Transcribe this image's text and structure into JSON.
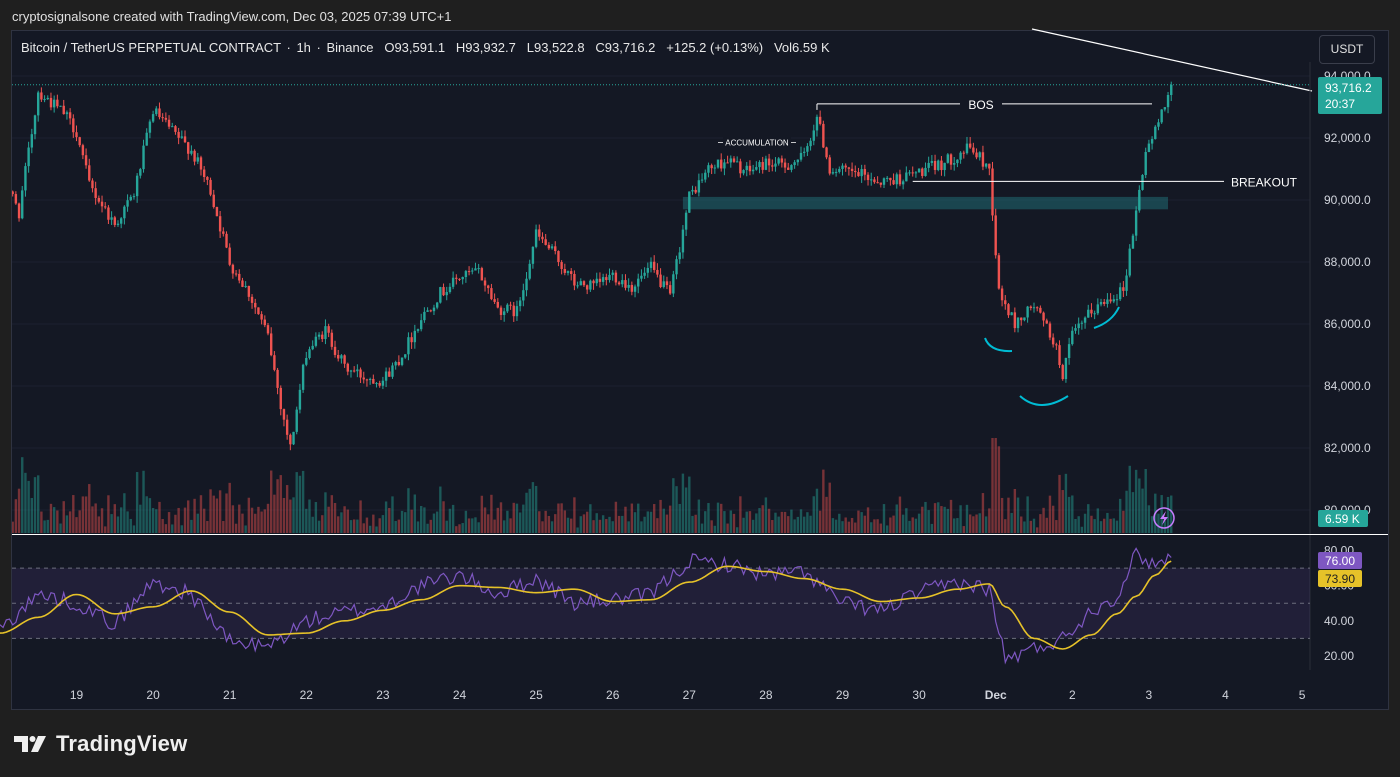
{
  "header": {
    "attribution": "cryptosignalsone created with TradingView.com, Dec 03, 2025 07:39 UTC+1"
  },
  "legend": {
    "symbol": "Bitcoin / TetherUS PERPETUAL CONTRACT",
    "interval": "1h",
    "exchange": "Binance",
    "open": "O93,591.1",
    "high": "H93,932.7",
    "low": "L93,522.8",
    "close": "C93,716.2",
    "change": "+125.2 (+0.13%)",
    "volume": "Vol6.59 K"
  },
  "currency_button": "USDT",
  "brand": {
    "name": "TradingView",
    "icon": "tradingview-logo-icon"
  },
  "colors": {
    "up": "#26a69a",
    "down": "#ef5350",
    "rsi": "#7e57c2",
    "rsi_ma": "#e6c229",
    "zone": "#1f6b73",
    "cup": "#00bcd4"
  },
  "chart_data": [
    {
      "type": "candlestick",
      "y_axis": {
        "ticks": [
          80000,
          82000,
          84000,
          86000,
          88000,
          90000,
          92000,
          94000
        ],
        "tick_labels": [
          "80,000.0",
          "82,000.0",
          "84,000.0",
          "86,000.0",
          "88,000.0",
          "90,000.0",
          "92,000.0",
          "94,000.0"
        ],
        "ylim": [
          79700,
          95400
        ]
      },
      "x_axis": {
        "tick_labels": [
          "19",
          "20",
          "21",
          "22",
          "23",
          "24",
          "25",
          "26",
          "27",
          "28",
          "29",
          "30",
          "Dec",
          "2",
          "3",
          "4",
          "5"
        ]
      },
      "price_path": [
        {
          "date": "Nov 18 00:00",
          "close": 91000
        },
        {
          "date": "Nov 18 06:00",
          "close": 89600
        },
        {
          "date": "Nov 18 12:00",
          "close": 93500
        },
        {
          "date": "Nov 18 20:00",
          "close": 92800
        },
        {
          "date": "Nov 19 00:00",
          "close": 92200
        },
        {
          "date": "Nov 19 04:00",
          "close": 90500
        },
        {
          "date": "Nov 19 12:00",
          "close": 89200
        },
        {
          "date": "Nov 19 18:00",
          "close": 90200
        },
        {
          "date": "Nov 20 00:00",
          "close": 92900
        },
        {
          "date": "Nov 20 06:00",
          "close": 92200
        },
        {
          "date": "Nov 20 12:00",
          "close": 91600
        },
        {
          "date": "Nov 20 18:00",
          "close": 90300
        },
        {
          "date": "Nov 21 00:00",
          "close": 88000
        },
        {
          "date": "Nov 21 06:00",
          "close": 87000
        },
        {
          "date": "Nov 21 12:00",
          "close": 85600
        },
        {
          "date": "Nov 21 16:00",
          "close": 83400
        },
        {
          "date": "Nov 21 19:00",
          "close": 82000
        },
        {
          "date": "Nov 22 00:00",
          "close": 85100
        },
        {
          "date": "Nov 22 06:00",
          "close": 85800
        },
        {
          "date": "Nov 22 12:00",
          "close": 84600
        },
        {
          "date": "Nov 22 18:00",
          "close": 84300
        },
        {
          "date": "Nov 23 00:00",
          "close": 84200
        },
        {
          "date": "Nov 23 06:00",
          "close": 85000
        },
        {
          "date": "Nov 23 12:00",
          "close": 86200
        },
        {
          "date": "Nov 23 18:00",
          "close": 87000
        },
        {
          "date": "Nov 24 00:00",
          "close": 87500
        },
        {
          "date": "Nov 24 06:00",
          "close": 87700
        },
        {
          "date": "Nov 24 12:00",
          "close": 86500
        },
        {
          "date": "Nov 24 18:00",
          "close": 86400
        },
        {
          "date": "Nov 25 00:00",
          "close": 88900
        },
        {
          "date": "Nov 25 06:00",
          "close": 88200
        },
        {
          "date": "Nov 25 12:00",
          "close": 87300
        },
        {
          "date": "Nov 25 18:00",
          "close": 87200
        },
        {
          "date": "Nov 26 00:00",
          "close": 87600
        },
        {
          "date": "Nov 26 06:00",
          "close": 87200
        },
        {
          "date": "Nov 26 12:00",
          "close": 87800
        },
        {
          "date": "Nov 26 18:00",
          "close": 86900
        },
        {
          "date": "Nov 27 00:00",
          "close": 90100
        },
        {
          "date": "Nov 27 06:00",
          "close": 91000
        },
        {
          "date": "Nov 27 12:00",
          "close": 91300
        },
        {
          "date": "Nov 27 18:00",
          "close": 90900
        },
        {
          "date": "Nov 28 00:00",
          "close": 91200
        },
        {
          "date": "Nov 28 06:00",
          "close": 91100
        },
        {
          "date": "Nov 28 12:00",
          "close": 91400
        },
        {
          "date": "Nov 28 16:00",
          "close": 92700
        },
        {
          "date": "Nov 28 20:00",
          "close": 91000
        },
        {
          "date": "Nov 29 06:00",
          "close": 90800
        },
        {
          "date": "Nov 29 12:00",
          "close": 90600
        },
        {
          "date": "Nov 29 18:00",
          "close": 90700
        },
        {
          "date": "Nov 30 00:00",
          "close": 90900
        },
        {
          "date": "Nov 30 08:00",
          "close": 91200
        },
        {
          "date": "Nov 30 16:00",
          "close": 91700
        },
        {
          "date": "Nov 30 22:00",
          "close": 91000
        },
        {
          "date": "Dec 01 01:00",
          "close": 87000
        },
        {
          "date": "Dec 01 06:00",
          "close": 86000
        },
        {
          "date": "Dec 01 12:00",
          "close": 86600
        },
        {
          "date": "Dec 01 18:00",
          "close": 85500
        },
        {
          "date": "Dec 01 21:00",
          "close": 84400
        },
        {
          "date": "Dec 02 00:00",
          "close": 85600
        },
        {
          "date": "Dec 02 06:00",
          "close": 86400
        },
        {
          "date": "Dec 02 12:00",
          "close": 86900
        },
        {
          "date": "Dec 02 16:00",
          "close": 87100
        },
        {
          "date": "Dec 02 20:00",
          "close": 89600
        },
        {
          "date": "Dec 02 23:00",
          "close": 91600
        },
        {
          "date": "Dec 03 02:00",
          "close": 92200
        },
        {
          "date": "Dec 03 05:00",
          "close": 93200
        },
        {
          "date": "Dec 03 07:00",
          "close": 93716.2
        }
      ],
      "annotations": [
        "BOS",
        "BREAKOUT",
        "ACCUMULATION"
      ],
      "levels": {
        "bos": 93100,
        "breakout": 90600,
        "zone": [
          89700,
          90100
        ]
      },
      "last_price": {
        "value": "93,716.2",
        "countdown": "20:37"
      },
      "volume": {
        "last_label": "6.59 K"
      }
    },
    {
      "type": "line",
      "panel": "RSI",
      "y_axis": {
        "ticks": [
          20,
          40,
          60,
          80
        ],
        "tick_labels": [
          "20.00",
          "40.00",
          "60.00",
          "80.00"
        ],
        "ylim": [
          10,
          85
        ]
      },
      "bands": [
        30,
        50,
        70
      ],
      "series": [
        {
          "values_path": [
            {
              "date": "Nov 18 00:00",
              "rsi": 35,
              "ma": 33
            },
            {
              "date": "Nov 18 12:00",
              "rsi": 55,
              "ma": 42
            },
            {
              "date": "Nov 19 00:00",
              "rsi": 50,
              "ma": 55
            },
            {
              "date": "Nov 19 12:00",
              "rsi": 38,
              "ma": 44
            },
            {
              "date": "Nov 20 00:00",
              "rsi": 62,
              "ma": 48
            },
            {
              "date": "Nov 20 12:00",
              "rsi": 55,
              "ma": 57
            },
            {
              "date": "Nov 21 00:00",
              "rsi": 28,
              "ma": 45
            },
            {
              "date": "Nov 21 12:00",
              "rsi": 25,
              "ma": 32
            },
            {
              "date": "Nov 22 00:00",
              "rsi": 40,
              "ma": 33
            },
            {
              "date": "Nov 22 12:00",
              "rsi": 45,
              "ma": 40
            },
            {
              "date": "Nov 23 00:00",
              "rsi": 48,
              "ma": 46
            },
            {
              "date": "Nov 23 12:00",
              "rsi": 60,
              "ma": 52
            },
            {
              "date": "Nov 24 00:00",
              "rsi": 66,
              "ma": 60
            },
            {
              "date": "Nov 24 12:00",
              "rsi": 55,
              "ma": 59
            },
            {
              "date": "Nov 25 00:00",
              "rsi": 64,
              "ma": 56
            },
            {
              "date": "Nov 25 12:00",
              "rsi": 50,
              "ma": 58
            },
            {
              "date": "Nov 26 00:00",
              "rsi": 52,
              "ma": 51
            },
            {
              "date": "Nov 26 12:00",
              "rsi": 55,
              "ma": 52
            },
            {
              "date": "Nov 27 00:00",
              "rsi": 74,
              "ma": 62
            },
            {
              "date": "Nov 27 12:00",
              "rsi": 72,
              "ma": 71
            },
            {
              "date": "Nov 28 00:00",
              "rsi": 66,
              "ma": 68
            },
            {
              "date": "Nov 28 12:00",
              "rsi": 68,
              "ma": 64
            },
            {
              "date": "Nov 29 00:00",
              "rsi": 50,
              "ma": 58
            },
            {
              "date": "Nov 29 12:00",
              "rsi": 46,
              "ma": 51
            },
            {
              "date": "Nov 30 00:00",
              "rsi": 56,
              "ma": 53
            },
            {
              "date": "Nov 30 12:00",
              "rsi": 62,
              "ma": 58
            },
            {
              "date": "Nov 30 22:00",
              "rsi": 58,
              "ma": 61
            },
            {
              "date": "Dec 01 03:00",
              "rsi": 18,
              "ma": 48
            },
            {
              "date": "Dec 01 12:00",
              "rsi": 24,
              "ma": 30
            },
            {
              "date": "Dec 01 21:00",
              "rsi": 30,
              "ma": 24
            },
            {
              "date": "Dec 02 06:00",
              "rsi": 46,
              "ma": 32
            },
            {
              "date": "Dec 02 14:00",
              "rsi": 54,
              "ma": 44
            },
            {
              "date": "Dec 02 20:00",
              "rsi": 78,
              "ma": 54
            },
            {
              "date": "Dec 03 02:00",
              "rsi": 72,
              "ma": 66
            },
            {
              "date": "Dec 03 07:00",
              "rsi": 76,
              "ma": 73.9
            }
          ]
        }
      ],
      "last_values": {
        "rsi": "76.00",
        "ma": "73.90"
      }
    }
  ]
}
